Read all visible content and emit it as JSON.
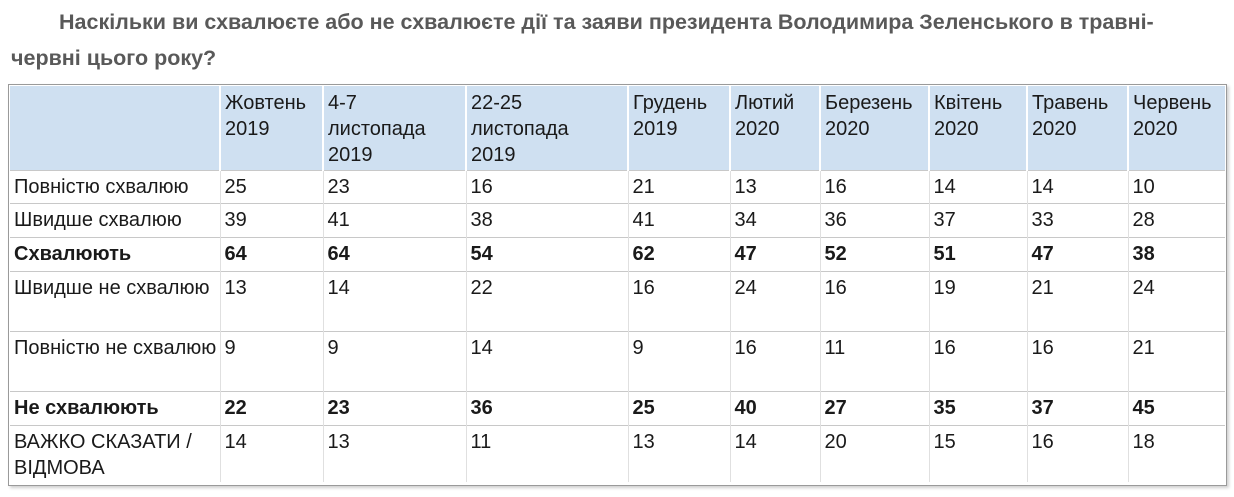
{
  "title": "Наскільки ви схвалюєте або не схвалюєте дії та заяви президента Володимира Зеленського в травні-червні цього року?",
  "table": {
    "columns": [
      {
        "line1": "Жовтень",
        "line2": "2019",
        "line3": ""
      },
      {
        "line1": "4-7",
        "line2": "листопада",
        "line3": "2019"
      },
      {
        "line1": "22-25",
        "line2": "листопада",
        "line3": "2019"
      },
      {
        "line1": "Грудень",
        "line2": "2019",
        "line3": ""
      },
      {
        "line1": "Лютий",
        "line2": "2020",
        "line3": ""
      },
      {
        "line1": "Березень",
        "line2": "2020",
        "line3": ""
      },
      {
        "line1": "Квітень",
        "line2": "2020",
        "line3": ""
      },
      {
        "line1": "Травень",
        "line2": "2020",
        "line3": ""
      },
      {
        "line1": "Червень",
        "line2": "2020",
        "line3": ""
      }
    ],
    "rows": [
      {
        "label": "Повністю схвалюю",
        "bold": false,
        "values": [
          "25",
          "23",
          "16",
          "21",
          "13",
          "16",
          "14",
          "14",
          "10"
        ]
      },
      {
        "label": "Швидше схвалюю",
        "bold": false,
        "values": [
          "39",
          "41",
          "38",
          "41",
          "34",
          "36",
          "37",
          "33",
          "28"
        ]
      },
      {
        "label": "Схвалюють",
        "bold": true,
        "values": [
          "64",
          "64",
          "54",
          "62",
          "47",
          "52",
          "51",
          "47",
          "38"
        ]
      },
      {
        "label": "Швидше не схвалюю",
        "bold": false,
        "values": [
          "13",
          "14",
          "22",
          "16",
          "24",
          "16",
          "19",
          "21",
          "24"
        ]
      },
      {
        "label": "Повністю не схвалюю",
        "bold": false,
        "values": [
          "9",
          "9",
          "14",
          "9",
          "16",
          "11",
          "16",
          "16",
          "21"
        ]
      },
      {
        "label": "Не схвалюють",
        "bold": true,
        "values": [
          "22",
          "23",
          "36",
          "25",
          "40",
          "27",
          "35",
          "37",
          "45"
        ]
      },
      {
        "label": "ВАЖКО СКАЗАТИ / ВІДМОВА",
        "bold": false,
        "values": [
          "14",
          "13",
          "11",
          "13",
          "14",
          "20",
          "15",
          "16",
          "18"
        ]
      }
    ]
  },
  "colors": {
    "header_background": "#cfe0f1",
    "title_text": "#595959"
  }
}
